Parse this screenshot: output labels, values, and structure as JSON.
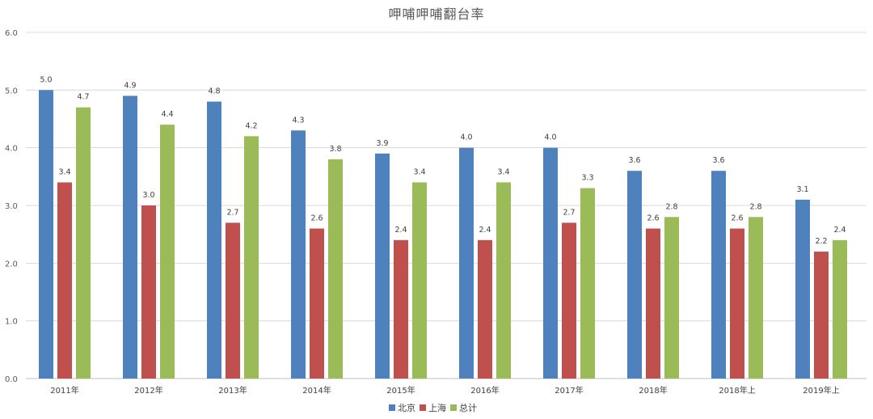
{
  "chart_data": {
    "type": "bar",
    "title": "呷哺呷哺翻台率",
    "categories": [
      "2011年",
      "2012年",
      "2013年",
      "2014年",
      "2015年",
      "2016年",
      "2017年",
      "2018年",
      "2018年上",
      "2019年上"
    ],
    "series": [
      {
        "name": "北京",
        "color": "#4f81bd",
        "values": [
          5.0,
          4.9,
          4.8,
          4.3,
          3.9,
          4.0,
          4.0,
          3.6,
          3.6,
          3.1
        ]
      },
      {
        "name": "上海",
        "color": "#c0504d",
        "values": [
          3.4,
          3.0,
          2.7,
          2.6,
          2.4,
          2.4,
          2.7,
          2.6,
          2.6,
          2.2
        ]
      },
      {
        "name": "总计",
        "color": "#9bbb59",
        "values": [
          4.7,
          4.4,
          4.2,
          3.8,
          3.4,
          3.4,
          3.3,
          2.8,
          2.8,
          2.4
        ]
      }
    ],
    "ylim": [
      0,
      6
    ],
    "yticks": [
      "0.0",
      "1.0",
      "2.0",
      "3.0",
      "4.0",
      "5.0",
      "6.0"
    ],
    "xlabel": "",
    "ylabel": "",
    "grid": true,
    "legend_position": "bottom",
    "data_labels": true
  }
}
